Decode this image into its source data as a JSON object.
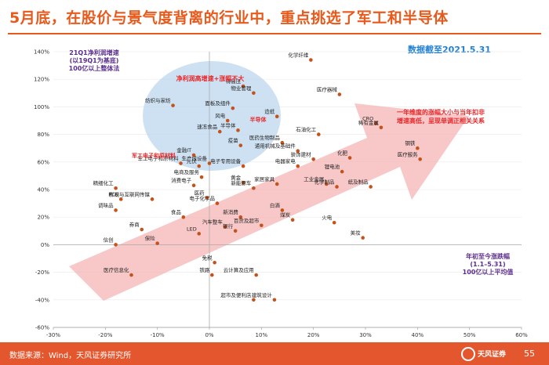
{
  "page": {
    "title": "5月底，在股价与景气度背离的行业中，重点挑选了军工和半导体",
    "as_of": "数据截至2021.5.31",
    "source": "数据来源：Wind，天风证券研究所",
    "logo_text": "天风证券",
    "page_number": "55"
  },
  "colors": {
    "accent": "#e85a1c",
    "point": "#c4521a",
    "circle": "#bcd7ef",
    "arrow": "#f6b6b6",
    "highlight_text": "#e8272a",
    "note_text": "#5b2d8e"
  },
  "chart_data": {
    "type": "scatter",
    "xlim": [
      -0.3,
      0.6
    ],
    "ylim": [
      -0.6,
      1.4
    ],
    "x_ticks": [
      "-30%",
      "-20%",
      "-10%",
      "0%",
      "10%",
      "20%",
      "30%",
      "40%",
      "50%",
      "60%"
    ],
    "y_ticks": [
      "140%",
      "120%",
      "100%",
      "80%",
      "60%",
      "40%",
      "20%",
      "0%",
      "-20%",
      "-40%",
      "-60%"
    ],
    "ylabel": "21Q1净利润增速\n(以19Q1为基底)\n100亿以上整体法",
    "xlabel": "年初至今涨跌幅\n(1.1–5.31)\n100亿以上平均值",
    "annotations": {
      "circle_label": "净利润高增速+涨幅不大",
      "military_label": "军工电子和原材料",
      "semiconductor_label": "半导体",
      "arrow_note": "一年维度的涨幅大小与当年扣非\n增速高低，呈现单调正相关关系"
    },
    "points": [
      {
        "name": "化学纤维",
        "x": 0.195,
        "y": 1.34
      },
      {
        "name": "特高压",
        "x": 0.065,
        "y": 1.15
      },
      {
        "name": "物业管理",
        "x": 0.085,
        "y": 1.1
      },
      {
        "name": "医疗器械",
        "x": 0.25,
        "y": 1.09
      },
      {
        "name": "纺织与家纺",
        "x": -0.07,
        "y": 1.01
      },
      {
        "name": "面板及组件",
        "x": 0.045,
        "y": 0.99
      },
      {
        "name": "风电",
        "x": 0.035,
        "y": 0.9
      },
      {
        "name": "造纸",
        "x": 0.13,
        "y": 0.93
      },
      {
        "name": "半导体",
        "x": 0.055,
        "y": 0.83
      },
      {
        "name": "速冻食品",
        "x": 0.02,
        "y": 0.82
      },
      {
        "name": "石油化工",
        "x": 0.21,
        "y": 0.8
      },
      {
        "name": "CRO",
        "x": 0.32,
        "y": 0.88
      },
      {
        "name": "稀有金属",
        "x": 0.33,
        "y": 0.85
      },
      {
        "name": "疫苗",
        "x": 0.06,
        "y": 0.72
      },
      {
        "name": "医药生物制品",
        "x": 0.14,
        "y": 0.74
      },
      {
        "name": "通用机械及基础件",
        "x": 0.17,
        "y": 0.68
      },
      {
        "name": "金融IT",
        "x": -0.03,
        "y": 0.65
      },
      {
        "name": "化肥",
        "x": 0.27,
        "y": 0.63
      },
      {
        "name": "装饰建材",
        "x": 0.2,
        "y": 0.62
      },
      {
        "name": "钢铁",
        "x": 0.4,
        "y": 0.7
      },
      {
        "name": "医疗服务",
        "x": 0.405,
        "y": 0.62
      },
      {
        "name": "光伏",
        "x": -0.02,
        "y": 0.57
      },
      {
        "name": "生产线设备",
        "x": 0.0,
        "y": 0.59
      },
      {
        "name": "军工电子和原材料",
        "x": -0.055,
        "y": 0.59
      },
      {
        "name": "电子专用设备",
        "x": 0.065,
        "y": 0.57
      },
      {
        "name": "电器家电",
        "x": 0.17,
        "y": 0.57
      },
      {
        "name": "锂电池",
        "x": 0.255,
        "y": 0.53
      },
      {
        "name": "电商及服务",
        "x": -0.015,
        "y": 0.49
      },
      {
        "name": "工业金属",
        "x": 0.225,
        "y": 0.44
      },
      {
        "name": "化学制品",
        "x": 0.245,
        "y": 0.42
      },
      {
        "name": "纸及制品",
        "x": 0.31,
        "y": 0.42
      },
      {
        "name": "精细化工",
        "x": -0.18,
        "y": 0.41
      },
      {
        "name": "消费电子",
        "x": -0.03,
        "y": 0.43
      },
      {
        "name": "黄金",
        "x": 0.065,
        "y": 0.45
      },
      {
        "name": "家居家具",
        "x": 0.13,
        "y": 0.44
      },
      {
        "name": "新能源车",
        "x": 0.085,
        "y": 0.41
      },
      {
        "name": "PCB",
        "x": -0.17,
        "y": 0.33
      },
      {
        "name": "影视与互联网传媒",
        "x": -0.11,
        "y": 0.33
      },
      {
        "name": "医药",
        "x": -0.005,
        "y": 0.34
      },
      {
        "name": "电子化学品",
        "x": 0.015,
        "y": 0.3
      },
      {
        "name": "调味品",
        "x": -0.18,
        "y": 0.25
      },
      {
        "name": "白酒",
        "x": 0.14,
        "y": 0.25
      },
      {
        "name": "火电",
        "x": 0.24,
        "y": 0.16
      },
      {
        "name": "煤炭",
        "x": 0.16,
        "y": 0.18
      },
      {
        "name": "食品",
        "x": -0.05,
        "y": 0.2
      },
      {
        "name": "新消费",
        "x": 0.06,
        "y": 0.2
      },
      {
        "name": "券商",
        "x": -0.13,
        "y": 0.11
      },
      {
        "name": "汽车整车",
        "x": 0.03,
        "y": 0.13
      },
      {
        "name": "LED",
        "x": -0.02,
        "y": 0.08
      },
      {
        "name": "银行",
        "x": 0.05,
        "y": 0.1
      },
      {
        "name": "百货及超市",
        "x": 0.1,
        "y": 0.14
      },
      {
        "name": "美妆",
        "x": 0.295,
        "y": 0.05
      },
      {
        "name": "信创",
        "x": -0.18,
        "y": 0.0
      },
      {
        "name": "保险",
        "x": -0.1,
        "y": 0.01
      },
      {
        "name": "医疗信息化",
        "x": -0.15,
        "y": -0.22
      },
      {
        "name": "免税",
        "x": 0.01,
        "y": -0.13
      },
      {
        "name": "铁路",
        "x": 0.005,
        "y": -0.22
      },
      {
        "name": "云计算及应用",
        "x": 0.09,
        "y": -0.22
      },
      {
        "name": "超市及便利店",
        "x": 0.085,
        "y": -0.4
      },
      {
        "name": "建筑设计",
        "x": 0.125,
        "y": -0.4
      }
    ]
  }
}
